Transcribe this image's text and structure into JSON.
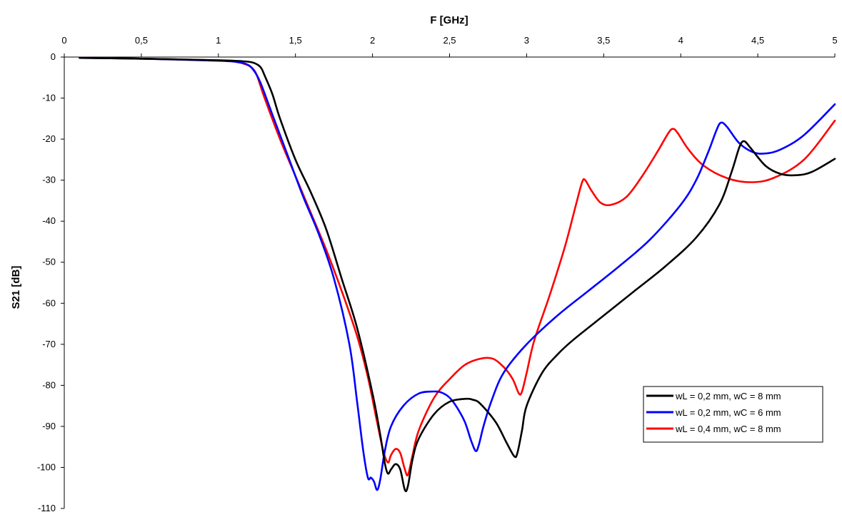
{
  "chart_data": {
    "type": "line",
    "title": "",
    "xlabel": "F [GHz]",
    "ylabel": "S21 [dB]",
    "xlim": [
      0,
      5
    ],
    "ylim": [
      -110,
      0
    ],
    "x_ticks": [
      "0",
      "0,5",
      "1",
      "1,5",
      "2",
      "2,5",
      "3",
      "3,5",
      "4",
      "4,5",
      "5"
    ],
    "y_ticks": [
      "0",
      "-10",
      "-20",
      "-30",
      "-40",
      "-50",
      "-60",
      "-70",
      "-80",
      "-90",
      "-100",
      "-110"
    ],
    "x_axis_position": "top",
    "grid": false,
    "legend_position": "bottom-right",
    "series": [
      {
        "name": "wL = 0,2 mm, wC = 8 mm",
        "color": "#000000",
        "points": [
          [
            0.1,
            -0.2
          ],
          [
            0.5,
            -0.4
          ],
          [
            1.0,
            -0.8
          ],
          [
            1.15,
            -1.0
          ],
          [
            1.22,
            -1.3
          ],
          [
            1.26,
            -2.0
          ],
          [
            1.28,
            -2.8
          ],
          [
            1.3,
            -4.5
          ],
          [
            1.35,
            -9.0
          ],
          [
            1.4,
            -15
          ],
          [
            1.5,
            -25
          ],
          [
            1.6,
            -33
          ],
          [
            1.7,
            -42
          ],
          [
            1.8,
            -54
          ],
          [
            1.9,
            -66
          ],
          [
            2.0,
            -82
          ],
          [
            2.05,
            -92
          ],
          [
            2.08,
            -99
          ],
          [
            2.1,
            -101.5
          ],
          [
            2.12,
            -100.5
          ],
          [
            2.15,
            -99.2
          ],
          [
            2.18,
            -100.5
          ],
          [
            2.21,
            -105.5
          ],
          [
            2.23,
            -104.5
          ],
          [
            2.26,
            -98
          ],
          [
            2.3,
            -93
          ],
          [
            2.4,
            -87
          ],
          [
            2.5,
            -84
          ],
          [
            2.6,
            -83.3
          ],
          [
            2.65,
            -83.5
          ],
          [
            2.7,
            -84.5
          ],
          [
            2.8,
            -89
          ],
          [
            2.87,
            -94
          ],
          [
            2.92,
            -97.3
          ],
          [
            2.94,
            -96.5
          ],
          [
            2.97,
            -91
          ],
          [
            3.0,
            -85
          ],
          [
            3.1,
            -77
          ],
          [
            3.2,
            -72.5
          ],
          [
            3.3,
            -69
          ],
          [
            3.5,
            -63
          ],
          [
            3.7,
            -57
          ],
          [
            3.9,
            -51
          ],
          [
            4.1,
            -44
          ],
          [
            4.25,
            -36
          ],
          [
            4.33,
            -28
          ],
          [
            4.38,
            -22
          ],
          [
            4.41,
            -20.5
          ],
          [
            4.45,
            -22
          ],
          [
            4.55,
            -26.5
          ],
          [
            4.65,
            -28.5
          ],
          [
            4.75,
            -28.8
          ],
          [
            4.85,
            -28
          ],
          [
            5.0,
            -24.8
          ]
        ]
      },
      {
        "name": "wL = 0,2 mm, wC = 6 mm",
        "color": "#0000ff",
        "points": [
          [
            0.1,
            -0.2
          ],
          [
            0.5,
            -0.4
          ],
          [
            1.0,
            -0.9
          ],
          [
            1.12,
            -1.2
          ],
          [
            1.18,
            -1.7
          ],
          [
            1.22,
            -2.8
          ],
          [
            1.27,
            -6
          ],
          [
            1.35,
            -14
          ],
          [
            1.45,
            -24
          ],
          [
            1.55,
            -34
          ],
          [
            1.65,
            -43
          ],
          [
            1.75,
            -54
          ],
          [
            1.85,
            -70
          ],
          [
            1.9,
            -84
          ],
          [
            1.94,
            -96
          ],
          [
            1.97,
            -102.5
          ],
          [
            1.99,
            -102.5
          ],
          [
            2.01,
            -103.5
          ],
          [
            2.03,
            -105.5
          ],
          [
            2.05,
            -103
          ],
          [
            2.08,
            -96
          ],
          [
            2.12,
            -90
          ],
          [
            2.2,
            -85
          ],
          [
            2.3,
            -82
          ],
          [
            2.4,
            -81.5
          ],
          [
            2.45,
            -81.8
          ],
          [
            2.5,
            -83
          ],
          [
            2.55,
            -85.5
          ],
          [
            2.6,
            -89
          ],
          [
            2.64,
            -93.5
          ],
          [
            2.67,
            -96
          ],
          [
            2.69,
            -94.5
          ],
          [
            2.72,
            -90
          ],
          [
            2.77,
            -84
          ],
          [
            2.85,
            -77
          ],
          [
            3.0,
            -70
          ],
          [
            3.2,
            -63
          ],
          [
            3.4,
            -57
          ],
          [
            3.6,
            -51
          ],
          [
            3.8,
            -44.5
          ],
          [
            4.0,
            -36
          ],
          [
            4.1,
            -30
          ],
          [
            4.18,
            -23
          ],
          [
            4.23,
            -18
          ],
          [
            4.26,
            -16
          ],
          [
            4.3,
            -17
          ],
          [
            4.38,
            -21
          ],
          [
            4.47,
            -23.2
          ],
          [
            4.55,
            -23.5
          ],
          [
            4.65,
            -22.5
          ],
          [
            4.8,
            -19
          ],
          [
            5.0,
            -11.5
          ]
        ]
      },
      {
        "name": "wL = 0,4 mm, wC = 8 mm",
        "color": "#ff0000",
        "points": [
          [
            0.1,
            -0.2
          ],
          [
            0.5,
            -0.4
          ],
          [
            1.0,
            -0.8
          ],
          [
            1.12,
            -1.2
          ],
          [
            1.18,
            -1.8
          ],
          [
            1.22,
            -2.7
          ],
          [
            1.25,
            -4.5
          ],
          [
            1.3,
            -10
          ],
          [
            1.4,
            -20
          ],
          [
            1.5,
            -29
          ],
          [
            1.6,
            -38
          ],
          [
            1.7,
            -47
          ],
          [
            1.8,
            -57
          ],
          [
            1.9,
            -68
          ],
          [
            1.97,
            -78
          ],
          [
            2.03,
            -89
          ],
          [
            2.07,
            -96
          ],
          [
            2.1,
            -98.8
          ],
          [
            2.12,
            -97
          ],
          [
            2.15,
            -95.5
          ],
          [
            2.18,
            -96.5
          ],
          [
            2.21,
            -100.5
          ],
          [
            2.23,
            -101.8
          ],
          [
            2.26,
            -97
          ],
          [
            2.3,
            -91
          ],
          [
            2.4,
            -83
          ],
          [
            2.5,
            -78.5
          ],
          [
            2.6,
            -75
          ],
          [
            2.7,
            -73.5
          ],
          [
            2.78,
            -73.5
          ],
          [
            2.85,
            -75.5
          ],
          [
            2.91,
            -78.5
          ],
          [
            2.95,
            -82
          ],
          [
            2.97,
            -81.5
          ],
          [
            3.0,
            -77
          ],
          [
            3.05,
            -69
          ],
          [
            3.15,
            -58
          ],
          [
            3.25,
            -46
          ],
          [
            3.32,
            -36
          ],
          [
            3.36,
            -30.5
          ],
          [
            3.38,
            -30
          ],
          [
            3.42,
            -32.5
          ],
          [
            3.48,
            -35.5
          ],
          [
            3.55,
            -36
          ],
          [
            3.65,
            -34
          ],
          [
            3.75,
            -29
          ],
          [
            3.85,
            -23
          ],
          [
            3.92,
            -18.5
          ],
          [
            3.95,
            -17.5
          ],
          [
            3.98,
            -18.5
          ],
          [
            4.05,
            -22.5
          ],
          [
            4.15,
            -26.5
          ],
          [
            4.3,
            -29.5
          ],
          [
            4.45,
            -30.5
          ],
          [
            4.6,
            -29.5
          ],
          [
            4.8,
            -25
          ],
          [
            5.0,
            -15.5
          ]
        ]
      }
    ]
  }
}
